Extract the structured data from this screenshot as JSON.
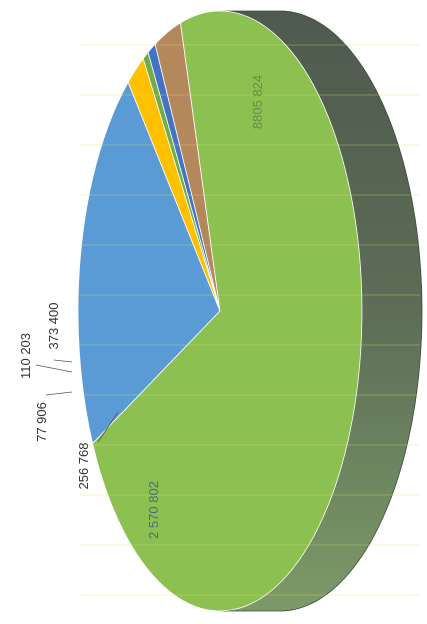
{
  "chart_data": {
    "type": "pie",
    "style": "3d",
    "rotation": "rotated 90 degrees clockwise",
    "legend": "none",
    "slices": [
      {
        "label": "8805 824",
        "value": 8805824,
        "color": "#8cc152"
      },
      {
        "label": "2 570 802",
        "value": 2570802,
        "color": "#5b9bd5"
      },
      {
        "label": "256 768",
        "value": 256768,
        "color": "#ffc000"
      },
      {
        "label": "77 906",
        "value": 77906,
        "color": "#70ad47"
      },
      {
        "label": "110 203",
        "value": 110203,
        "color": "#4472c4"
      },
      {
        "label": "373 400",
        "value": 373400,
        "color": "#b5875d"
      }
    ]
  }
}
